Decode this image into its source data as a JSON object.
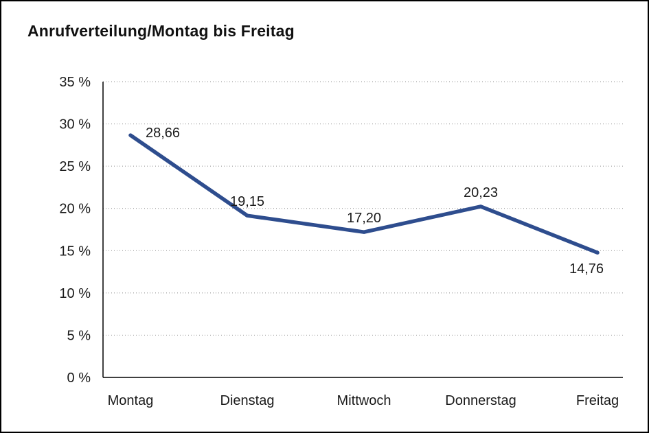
{
  "chart_data": {
    "type": "line",
    "title": "Anrufverteilung/Montag bis Freitag",
    "categories": [
      "Montag",
      "Dienstag",
      "Mittwoch",
      "Donnerstag",
      "Freitag"
    ],
    "values": [
      28.66,
      19.15,
      17.2,
      20.23,
      14.76
    ],
    "value_labels": [
      "28,66",
      "19,15",
      "17,20",
      "20,23",
      "14,76"
    ],
    "label_positions": [
      "right",
      "above",
      "above",
      "above",
      "below"
    ],
    "y_ticks": [
      0,
      5,
      10,
      15,
      20,
      25,
      30,
      35
    ],
    "y_tick_labels": [
      "0 %",
      "5 %",
      "10 %",
      "15 %",
      "20 %",
      "25 %",
      "30 %",
      "35 %"
    ],
    "ylim": [
      0,
      35
    ],
    "xlabel": "",
    "ylabel": "",
    "legend": "none",
    "grid": "horizontal-dotted",
    "line_color": "#2E4D8E",
    "axis_color": "#000000",
    "grid_color": "#8c8c8c"
  }
}
